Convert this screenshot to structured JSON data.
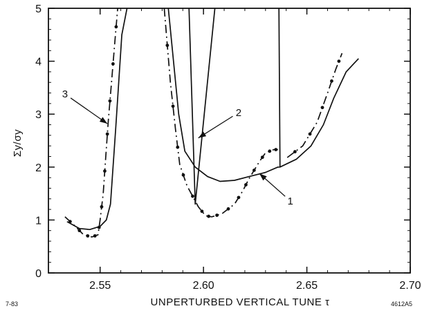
{
  "chart_data": {
    "type": "line",
    "xlabel": "UNPERTURBED VERTICAL TUNE τ",
    "ylabel": "Σy/σy",
    "xlim": [
      2.525,
      2.7
    ],
    "ylim": [
      0,
      5
    ],
    "xticks": [
      "2.55",
      "2.60",
      "2.65",
      "2.70"
    ],
    "yticks": [
      "0",
      "1",
      "2",
      "3",
      "4",
      "5"
    ],
    "grid": false,
    "corner_left": "7-83",
    "corner_right": "4612A5",
    "series": [
      {
        "name": "1",
        "style": "solid",
        "segments": [
          [
            [
              2.534,
              0.97
            ],
            [
              2.54,
              0.84
            ],
            [
              2.545,
              0.82
            ],
            [
              2.55,
              0.88
            ],
            [
              2.553,
              1.0
            ],
            [
              2.555,
              1.3
            ],
            [
              2.5575,
              2.7
            ],
            [
              2.5605,
              4.5
            ],
            [
              2.563,
              5.0
            ]
          ],
          [
            [
              2.583,
              5.0
            ],
            [
              2.588,
              3.0
            ],
            [
              2.591,
              2.3
            ],
            [
              2.596,
              2.0
            ],
            [
              2.602,
              1.82
            ],
            [
              2.608,
              1.73
            ],
            [
              2.615,
              1.75
            ],
            [
              2.622,
              1.82
            ],
            [
              2.63,
              1.9
            ],
            [
              2.636,
              2.0
            ],
            [
              2.637,
              2.0
            ],
            [
              2.637,
              2.1
            ],
            [
              2.6365,
              5.0
            ]
          ],
          [
            [
              2.637,
              2.0
            ],
            [
              2.645,
              2.15
            ],
            [
              2.652,
              2.4
            ],
            [
              2.658,
              2.8
            ],
            [
              2.663,
              3.3
            ],
            [
              2.669,
              3.8
            ],
            [
              2.675,
              4.05
            ]
          ]
        ]
      },
      {
        "name": "2",
        "style": "solid",
        "segments": [
          [
            [
              2.593,
              5.0
            ],
            [
              2.596,
              1.3
            ],
            [
              2.6055,
              5.0
            ]
          ]
        ]
      },
      {
        "name": "3",
        "style": "dash-dot",
        "segments": [
          [
            [
              2.533,
              1.06
            ],
            [
              2.538,
              0.88
            ],
            [
              2.542,
              0.72
            ],
            [
              2.546,
              0.68
            ],
            [
              2.549,
              0.72
            ],
            [
              2.55,
              1.0
            ],
            [
              2.5515,
              1.5
            ],
            [
              2.553,
              2.35
            ],
            [
              2.554,
              2.9
            ],
            [
              2.5555,
              3.6
            ],
            [
              2.557,
              4.3
            ],
            [
              2.5585,
              5.0
            ]
          ],
          [
            [
              2.581,
              5.0
            ],
            [
              2.584,
              3.6
            ],
            [
              2.5865,
              2.7
            ],
            [
              2.5885,
              2.05
            ],
            [
              2.592,
              1.65
            ],
            [
              2.5975,
              1.25
            ],
            [
              2.601,
              1.08
            ],
            [
              2.604,
              1.06
            ],
            [
              2.609,
              1.12
            ],
            [
              2.615,
              1.3
            ],
            [
              2.619,
              1.55
            ],
            [
              2.622,
              1.78
            ],
            [
              2.627,
              2.1
            ],
            [
              2.63,
              2.27
            ],
            [
              2.634,
              2.33
            ],
            [
              2.636,
              2.33
            ]
          ],
          [
            [
              2.6405,
              2.18
            ],
            [
              2.648,
              2.4
            ],
            [
              2.655,
              2.85
            ],
            [
              2.66,
              3.4
            ],
            [
              2.664,
              3.85
            ],
            [
              2.667,
              4.15
            ]
          ]
        ]
      }
    ],
    "annotations": [
      {
        "label": "1",
        "target": [
          2.627,
          1.88
        ],
        "text_at": [
          2.642,
          1.36
        ]
      },
      {
        "label": "2",
        "target": [
          2.5975,
          2.55
        ],
        "text_at": [
          2.617,
          3.03
        ]
      },
      {
        "label": "3",
        "target": [
          2.5535,
          2.82
        ],
        "text_at": [
          2.533,
          3.38
        ]
      }
    ]
  }
}
